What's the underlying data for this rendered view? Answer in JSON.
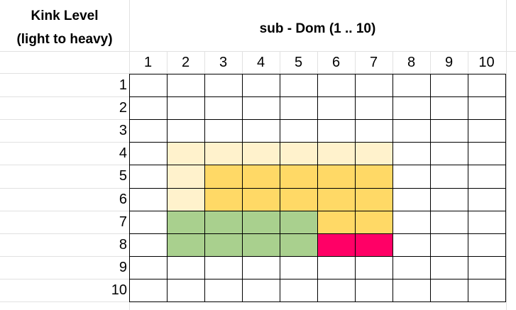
{
  "sheet": {
    "row_header_title_line1": "Kink Level",
    "row_header_title_line2": "(light to heavy)",
    "column_header_title": "sub - Dom (1 .. 10)",
    "column_labels": [
      "1",
      "2",
      "3",
      "4",
      "5",
      "6",
      "7",
      "8",
      "9",
      "10"
    ],
    "row_labels": [
      "1",
      "2",
      "3",
      "4",
      "5",
      "6",
      "7",
      "8",
      "9",
      "10"
    ]
  },
  "colors": {
    "empty": "#ffffff",
    "light_yellow": "#fff2cc",
    "gold": "#ffd966",
    "green": "#a9d08e",
    "magenta": "#ff0066",
    "gridline": "#e1e1e1",
    "border": "#000000"
  },
  "grid_fills": [
    [
      "empty",
      "empty",
      "empty",
      "empty",
      "empty",
      "empty",
      "empty",
      "empty",
      "empty",
      "empty"
    ],
    [
      "empty",
      "empty",
      "empty",
      "empty",
      "empty",
      "empty",
      "empty",
      "empty",
      "empty",
      "empty"
    ],
    [
      "empty",
      "empty",
      "empty",
      "empty",
      "empty",
      "empty",
      "empty",
      "empty",
      "empty",
      "empty"
    ],
    [
      "empty",
      "light_yellow",
      "light_yellow",
      "light_yellow",
      "light_yellow",
      "light_yellow",
      "light_yellow",
      "empty",
      "empty",
      "empty"
    ],
    [
      "empty",
      "light_yellow",
      "gold",
      "gold",
      "gold",
      "gold",
      "gold",
      "empty",
      "empty",
      "empty"
    ],
    [
      "empty",
      "light_yellow",
      "gold",
      "gold",
      "gold",
      "gold",
      "gold",
      "empty",
      "empty",
      "empty"
    ],
    [
      "empty",
      "green",
      "green",
      "green",
      "green",
      "gold",
      "gold",
      "empty",
      "empty",
      "empty"
    ],
    [
      "empty",
      "green",
      "green",
      "green",
      "green",
      "magenta",
      "magenta",
      "empty",
      "empty",
      "empty"
    ],
    [
      "empty",
      "empty",
      "empty",
      "empty",
      "empty",
      "empty",
      "empty",
      "empty",
      "empty",
      "empty"
    ],
    [
      "empty",
      "empty",
      "empty",
      "empty",
      "empty",
      "empty",
      "empty",
      "empty",
      "empty",
      "empty"
    ]
  ]
}
